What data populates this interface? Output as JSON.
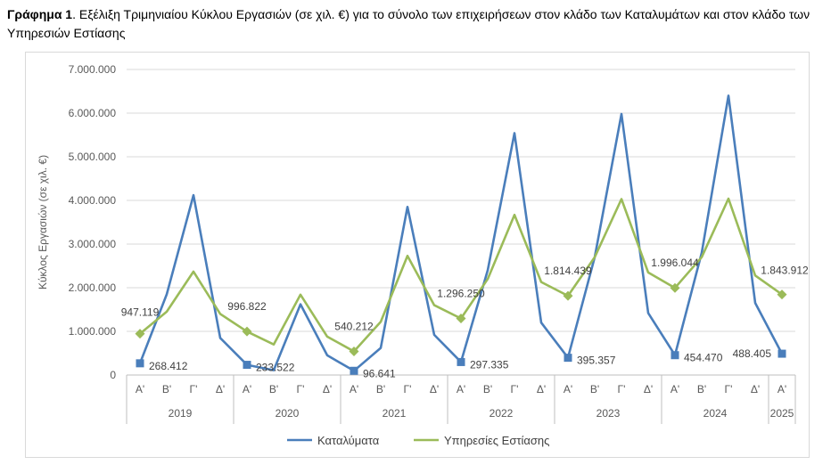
{
  "caption": {
    "bold": "Γράφημα 1",
    "text": ". Εξέλιξη Τριμηνιαίου Κύκλου Εργασιών (σε χιλ. €) για το σύνολο των επιχειρήσεων στον κλάδο των Καταλυμάτων και στον κλάδο των Υπηρεσιών Εστίασης"
  },
  "chart_data": {
    "type": "line",
    "ylabel": "Κύκλος Εργασιών (σε χιλ. €)",
    "ylim": [
      0,
      7000000
    ],
    "yticks": [
      "0",
      "1.000.000",
      "2.000.000",
      "3.000.000",
      "4.000.000",
      "5.000.000",
      "6.000.000",
      "7.000.000"
    ],
    "grid": true,
    "legend_position": "bottom",
    "x": [
      "Α'",
      "Β'",
      "Γ'",
      "Δ'",
      "Α'",
      "Β'",
      "Γ'",
      "Δ'",
      "Α'",
      "Β'",
      "Γ'",
      "Δ'",
      "Α'",
      "Β'",
      "Γ'",
      "Δ'",
      "Α'",
      "Β'",
      "Γ'",
      "Δ'",
      "Α'",
      "Β'",
      "Γ'",
      "Δ'",
      "Α'"
    ],
    "years": [
      {
        "label": "2019",
        "count": 4
      },
      {
        "label": "2020",
        "count": 4
      },
      {
        "label": "2021",
        "count": 4
      },
      {
        "label": "2022",
        "count": 4
      },
      {
        "label": "2023",
        "count": 4
      },
      {
        "label": "2024",
        "count": 4
      },
      {
        "label": "2025",
        "count": 1
      }
    ],
    "series": [
      {
        "name": "Καταλύματα",
        "color": "#4a7ebb",
        "marker": "square",
        "values": [
          268412,
          1850000,
          4120000,
          850000,
          233522,
          110000,
          1620000,
          450000,
          96641,
          620000,
          3850000,
          920000,
          297335,
          2400000,
          5540000,
          1200000,
          395357,
          2700000,
          5980000,
          1420000,
          454470,
          2800000,
          6400000,
          1650000,
          488405
        ]
      },
      {
        "name": "Υπηρεσίες Εστίασης",
        "color": "#9bbb59",
        "marker": "diamond",
        "values": [
          947119,
          1450000,
          2370000,
          1400000,
          996822,
          700000,
          1840000,
          880000,
          540212,
          1220000,
          2730000,
          1600000,
          1296250,
          2200000,
          3670000,
          2130000,
          1814439,
          2700000,
          4030000,
          2350000,
          1996044,
          2700000,
          4040000,
          2280000,
          1843912
        ]
      }
    ],
    "annotations": [
      {
        "series": 0,
        "index": 0,
        "text": "268.412"
      },
      {
        "series": 0,
        "index": 4,
        "text": "233.522"
      },
      {
        "series": 0,
        "index": 8,
        "text": "96.641"
      },
      {
        "series": 0,
        "index": 12,
        "text": "297.335"
      },
      {
        "series": 0,
        "index": 16,
        "text": "395.357"
      },
      {
        "series": 0,
        "index": 20,
        "text": "454.470"
      },
      {
        "series": 0,
        "index": 24,
        "text": "488.405"
      },
      {
        "series": 1,
        "index": 0,
        "text": "947.119"
      },
      {
        "series": 1,
        "index": 4,
        "text": "996.822"
      },
      {
        "series": 1,
        "index": 8,
        "text": "540.212"
      },
      {
        "series": 1,
        "index": 12,
        "text": "1.296.250"
      },
      {
        "series": 1,
        "index": 16,
        "text": "1.814.439"
      },
      {
        "series": 1,
        "index": 20,
        "text": "1.996.044"
      },
      {
        "series": 1,
        "index": 24,
        "text": "1.843.912"
      }
    ]
  }
}
